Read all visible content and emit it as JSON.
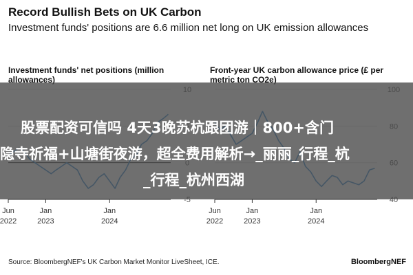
{
  "header": {
    "title": "Record Bullish Bets on UK Carbon",
    "subtitle": "Investment funds' positions are 6.6 million net long on UK emission allowances"
  },
  "overlay": {
    "line1": "股票配资可信吗 4天3晚苏杭跟团游｜800+含门",
    "line2": "隐寺祈福+山塘街夜游，超全费用解析→_丽丽_行程_杭",
    "line3": "_行程_杭州西湖"
  },
  "footer": {
    "source": "Source: BloombergNEF's UK Carbon Market Monitor LiveSheet, ICE.",
    "brand": "BloombergNEF"
  },
  "colors": {
    "line": "#3f8fd0",
    "grid": "#d9d9d9",
    "zero_line": "#222222"
  },
  "chart_data": [
    {
      "type": "line",
      "title": "Investment funds' net positions (million allowances)",
      "ylim": [
        -5,
        10
      ],
      "yticks": [
        10,
        5,
        0,
        -5
      ],
      "ytick_labels": [
        "10",
        "5",
        "0",
        "-5"
      ],
      "xlim": [
        "2022-06-01",
        "2024-12-15"
      ],
      "xticks": [
        "2022-06-01",
        "2023-01-01",
        "2024-01-01"
      ],
      "xtick_labels": [
        [
          "Jun",
          "2022"
        ],
        [
          "Jan",
          "2023"
        ],
        [
          "Jan",
          "2024"
        ]
      ],
      "grid": true,
      "series": [
        {
          "x": [
            "2022-06-01",
            "2022-07-01",
            "2022-08-01",
            "2022-09-01",
            "2022-10-01",
            "2022-11-01",
            "2022-12-01",
            "2023-01-01",
            "2023-02-01",
            "2023-03-01",
            "2023-04-01",
            "2023-05-01",
            "2023-06-01",
            "2023-07-01",
            "2023-08-01",
            "2023-09-01",
            "2023-10-01",
            "2023-11-01",
            "2023-12-01",
            "2024-01-01",
            "2024-02-01",
            "2024-03-01",
            "2024-04-01",
            "2024-05-01",
            "2024-06-01",
            "2024-07-01",
            "2024-08-01",
            "2024-09-01",
            "2024-10-01",
            "2024-11-01",
            "2024-12-01"
          ],
          "values": [
            1.0,
            1.5,
            2.0,
            1.5,
            0.5,
            0.0,
            -0.5,
            -1.0,
            -1.5,
            -1.0,
            -0.5,
            0.0,
            -0.5,
            -1.0,
            -2.5,
            -3.5,
            -3.0,
            -2.0,
            -1.5,
            -2.5,
            -3.5,
            -2.0,
            -1.0,
            0.5,
            1.0,
            2.5,
            3.0,
            4.0,
            5.5,
            6.0,
            6.6
          ]
        }
      ]
    },
    {
      "type": "line",
      "title": "Front-year UK carbon allowance price (£ per metric ton CO2e)",
      "ylim": [
        40,
        100
      ],
      "yticks": [
        100,
        80,
        60,
        40
      ],
      "ytick_labels": [
        "100",
        "80",
        "60",
        "40"
      ],
      "xlim": [
        "2022-06-01",
        "2024-12-15"
      ],
      "xticks": [
        "2022-06-01",
        "2023-01-01",
        "2024-01-01"
      ],
      "xtick_labels": [
        [
          "Jun",
          "2022"
        ],
        [
          "Jan",
          "2023"
        ],
        [
          "Jan",
          "2024"
        ]
      ],
      "grid": true,
      "series": [
        {
          "x": [
            "2022-06-01",
            "2022-07-01",
            "2022-08-01",
            "2022-09-01",
            "2022-10-01",
            "2022-11-01",
            "2022-12-01",
            "2023-01-01",
            "2023-02-01",
            "2023-03-01",
            "2023-04-01",
            "2023-05-01",
            "2023-06-01",
            "2023-07-01",
            "2023-08-01",
            "2023-09-01",
            "2023-10-01",
            "2023-11-01",
            "2023-12-01",
            "2024-01-01",
            "2024-02-01",
            "2024-03-01",
            "2024-04-01",
            "2024-05-01",
            "2024-06-01",
            "2024-07-01",
            "2024-08-01",
            "2024-09-01",
            "2024-10-01",
            "2024-11-01",
            "2024-12-01"
          ],
          "values": [
            82,
            78,
            80,
            75,
            70,
            72,
            74,
            76,
            82,
            88,
            82,
            78,
            72,
            68,
            62,
            60,
            66,
            58,
            55,
            50,
            47,
            50,
            53,
            52,
            48,
            50,
            49,
            48,
            50,
            56,
            57
          ]
        }
      ]
    }
  ]
}
